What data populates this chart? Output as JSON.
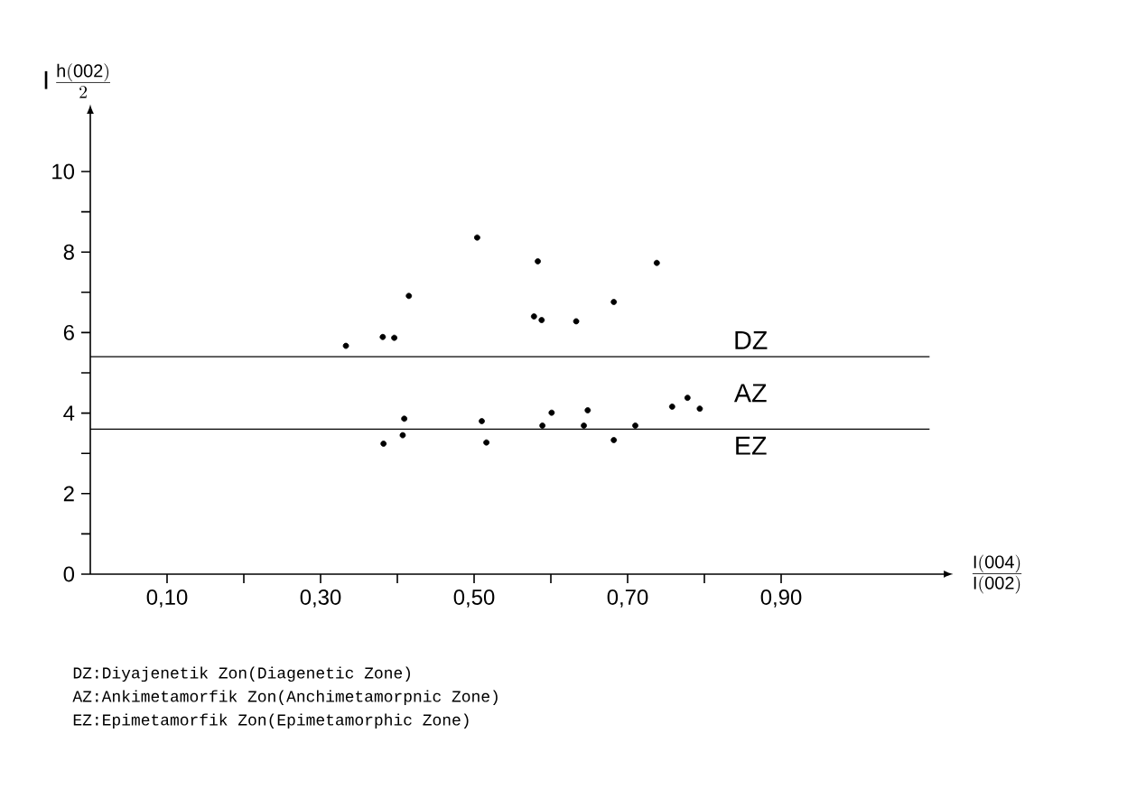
{
  "chart_data": {
    "type": "scatter",
    "xlabel": "\\frac{\\mathrm{I(004)}}{\\mathrm{I(002)}}",
    "ylabel": "\\mathrm{I}\\,\\frac{\\mathrm{h(002)}}{2}",
    "x": [
      0.333,
      0.381,
      0.396,
      0.415,
      0.504,
      0.578,
      0.382,
      0.409,
      0.407,
      0.51,
      0.516,
      0.583,
      0.738,
      0.682,
      0.588,
      0.633,
      0.589,
      0.601,
      0.648,
      0.643,
      0.682,
      0.71,
      0.758,
      0.778,
      0.794
    ],
    "values": [
      5.67,
      5.89,
      5.87,
      6.91,
      8.36,
      6.4,
      3.24,
      3.86,
      3.45,
      3.8,
      3.27,
      7.77,
      7.73,
      6.76,
      6.31,
      6.28,
      3.69,
      4.01,
      4.07,
      3.69,
      3.33,
      3.69,
      4.16,
      4.38,
      4.11
    ],
    "color": "#000000",
    "grid": false,
    "xlim": [
      0,
      1.11
    ],
    "ylim": [
      0,
      11.4
    ],
    "xticks": [
      {
        "value": 0.1,
        "label": "0,10"
      },
      {
        "value": 0.2,
        "label": null
      },
      {
        "value": 0.3,
        "label": "0,30"
      },
      {
        "value": 0.4,
        "label": null
      },
      {
        "value": 0.5,
        "label": "0,50"
      },
      {
        "value": 0.6,
        "label": null
      },
      {
        "value": 0.7,
        "label": "0,70"
      },
      {
        "value": 0.8,
        "label": null
      },
      {
        "value": 0.9,
        "label": "0,90"
      }
    ],
    "yticks": [
      0,
      {
        "value": 1,
        "label": null
      },
      2,
      {
        "value": 3,
        "label": null
      },
      4,
      {
        "value": 5,
        "label": null
      },
      6,
      {
        "value": 7,
        "label": null
      },
      8,
      {
        "value": 9,
        "label": null
      },
      10
    ],
    "ref_lines": [
      {
        "axis": "y",
        "value": 5.4,
        "color": "#000000"
      },
      {
        "axis": "y",
        "value": 3.6,
        "color": "#000000"
      }
    ],
    "annotations": [
      "DZ",
      "AZ",
      "EZ",
      "DZ:Diyajenetik Zon(Diagenetic Zone)",
      "AZ:Ankimetamorfik Zon(Anchimetamorpnic Zone)",
      "EZ:Epimetamorfik Zon(Epimetamorphic Zone)"
    ]
  }
}
